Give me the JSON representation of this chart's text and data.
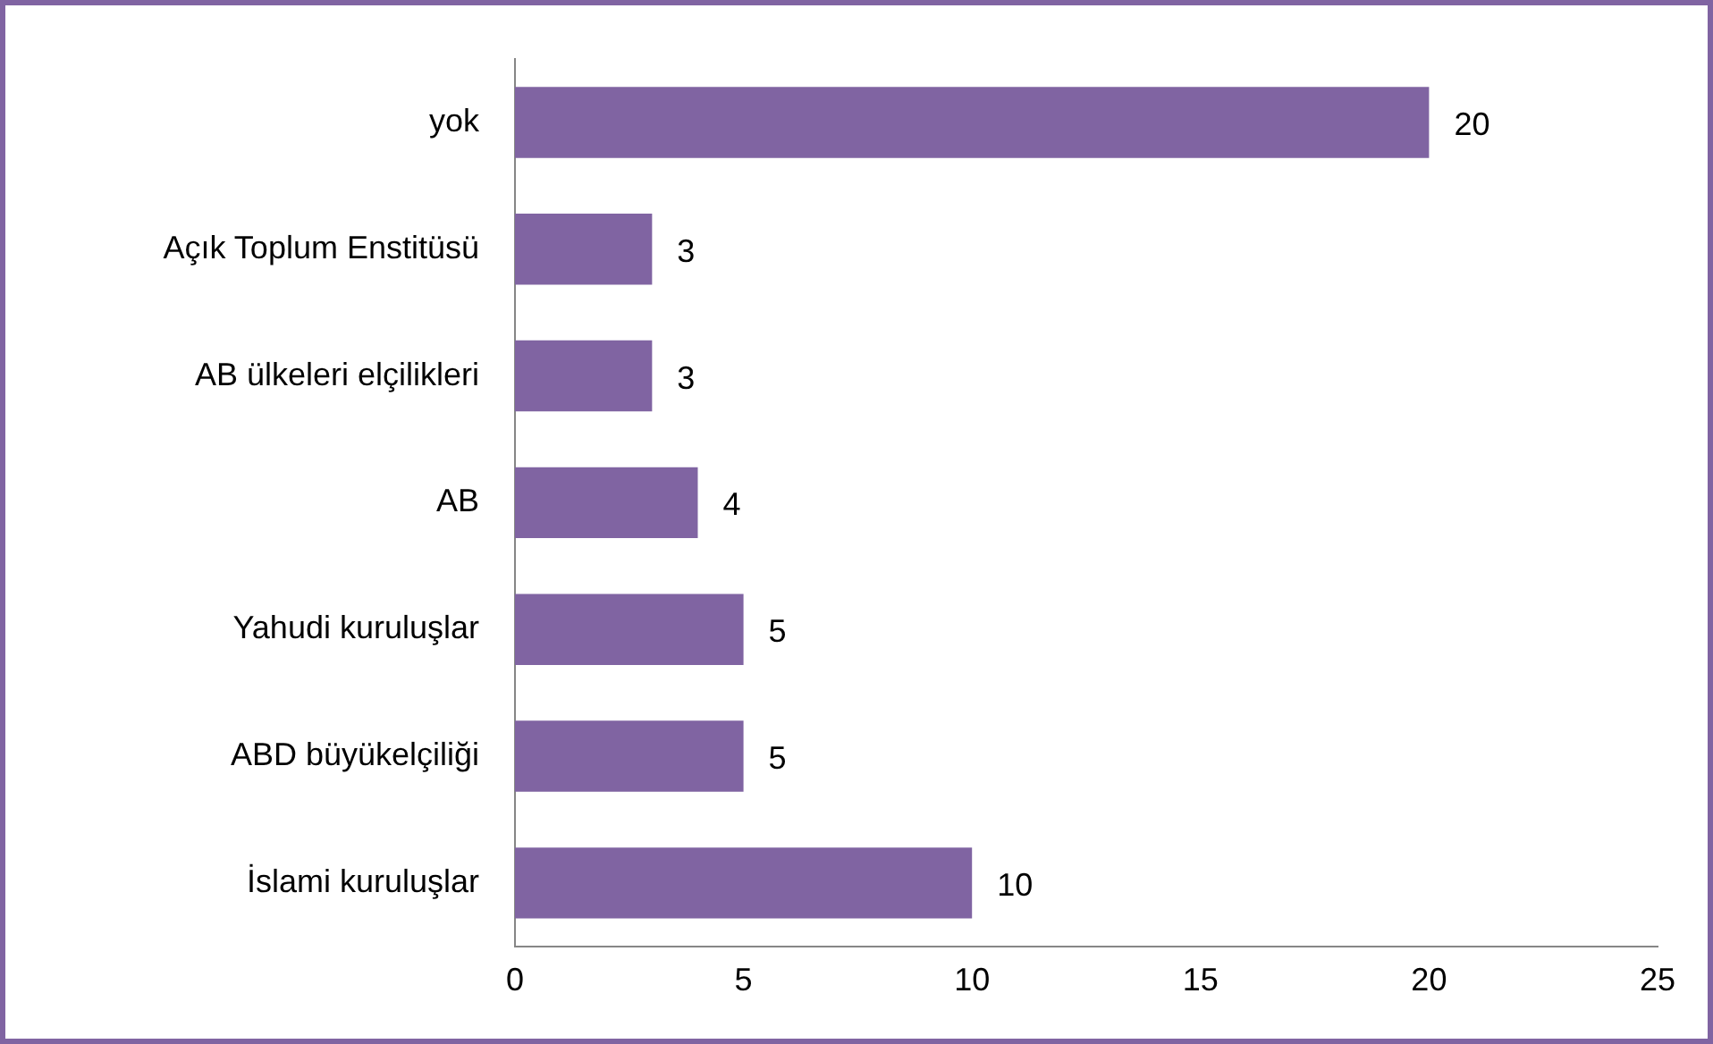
{
  "chart_data": {
    "type": "bar",
    "orientation": "horizontal",
    "categories": [
      "yok",
      "Açık Toplum Enstitüsü",
      "AB ülkeleri elçilikleri",
      "AB",
      "Yahudi kuruluşlar",
      "ABD büyükelçiliği",
      "İslami kuruluşlar"
    ],
    "values": [
      20,
      3,
      3,
      4,
      5,
      5,
      10
    ],
    "color": "#8064a2",
    "xlim": [
      0,
      25
    ],
    "xticks": [
      0,
      5,
      10,
      15,
      20,
      25
    ],
    "grid": false,
    "legend": false,
    "data_labels": true
  }
}
